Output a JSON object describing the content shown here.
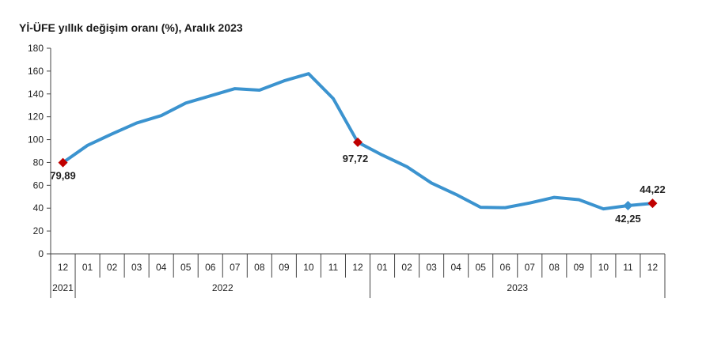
{
  "chart_data": {
    "type": "line",
    "title": "Yİ-ÜFE yıllık değişim oranı (%), Aralık 2023",
    "xlabel": "",
    "ylabel": "",
    "ylim": [
      0,
      180
    ],
    "yticks": [
      0,
      20,
      40,
      60,
      80,
      100,
      120,
      140,
      160,
      180
    ],
    "grid": false,
    "categories": [
      "12",
      "01",
      "02",
      "03",
      "04",
      "05",
      "06",
      "07",
      "08",
      "09",
      "10",
      "11",
      "12",
      "01",
      "02",
      "03",
      "04",
      "05",
      "06",
      "07",
      "08",
      "09",
      "10",
      "11",
      "12"
    ],
    "years": [
      {
        "label": "2021",
        "from": 0,
        "to": 0
      },
      {
        "label": "2022",
        "from": 1,
        "to": 12
      },
      {
        "label": "2023",
        "from": 13,
        "to": 24
      }
    ],
    "series": [
      {
        "color": "#3b93cf",
        "values": [
          79.89,
          95,
          105,
          114.5,
          121,
          132,
          138.3,
          144.6,
          143.3,
          151.5,
          157.7,
          136,
          97.72,
          86.5,
          76.3,
          62,
          52,
          40.8,
          40.4,
          44.5,
          49.4,
          47.4,
          39.4,
          42.25,
          44.22
        ]
      }
    ],
    "markers": [
      {
        "index": 0,
        "shape": "diamond",
        "color": "#c00000"
      },
      {
        "index": 12,
        "shape": "diamond",
        "color": "#c00000"
      },
      {
        "index": 23,
        "shape": "diamond",
        "color": "#3b93cf"
      },
      {
        "index": 24,
        "shape": "diamond",
        "color": "#c00000"
      }
    ],
    "data_labels": [
      {
        "index": 0,
        "text": "79,89",
        "position": "below"
      },
      {
        "index": 12,
        "text": "97,72",
        "position": "below-left"
      },
      {
        "index": 23,
        "text": "42,25",
        "position": "below"
      },
      {
        "index": 24,
        "text": "44,22",
        "position": "above"
      }
    ]
  }
}
